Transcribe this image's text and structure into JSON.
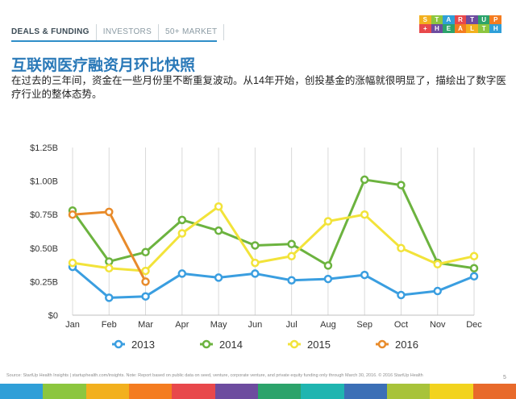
{
  "nav": {
    "items": [
      "DEALS & FUNDING",
      "INVESTORS",
      "50+ MARKET"
    ]
  },
  "logo": {
    "line1": [
      "S",
      "T",
      "A",
      "R",
      "T",
      "U",
      "P"
    ],
    "line2": [
      "+",
      "H",
      "E",
      "A",
      "L",
      "T",
      "H"
    ],
    "colors": [
      "#f2b01e",
      "#8cc63f",
      "#2f9fd8",
      "#e8484b",
      "#6d4c9f",
      "#2ca36b",
      "#f47c20"
    ]
  },
  "headline": "互联网医疗融资月环比快照",
  "lead": "在过去的三年间，资金在一些月份里不断重复波动。从14年开始，创投基金的涨幅就很明显了，描绘出了数字医疗行业的整体态势。",
  "chart_data": {
    "type": "line",
    "categories": [
      "Jan",
      "Feb",
      "Mar",
      "Apr",
      "May",
      "Jun",
      "Jul",
      "Aug",
      "Sep",
      "Oct",
      "Nov",
      "Dec"
    ],
    "y_ticks": [
      0,
      0.25,
      0.5,
      0.75,
      1.0,
      1.25
    ],
    "y_tick_labels": [
      "$0",
      "$0.25B",
      "$0.50B",
      "$0.75B",
      "$1.00B",
      "$1.25B"
    ],
    "ylim": [
      0,
      1.25
    ],
    "grid": "vertical",
    "legend_position": "bottom",
    "series": [
      {
        "name": "2013",
        "color": "#3a9ee0",
        "values": [
          0.36,
          0.13,
          0.14,
          0.31,
          0.28,
          0.31,
          0.26,
          0.27,
          0.3,
          0.15,
          0.18,
          0.29
        ]
      },
      {
        "name": "2014",
        "color": "#6cb33f",
        "values": [
          0.78,
          0.4,
          0.47,
          0.71,
          0.63,
          0.52,
          0.53,
          0.37,
          1.01,
          0.97,
          0.39,
          0.35
        ]
      },
      {
        "name": "2015",
        "color": "#f2e33a",
        "values": [
          0.39,
          0.35,
          0.33,
          0.61,
          0.81,
          0.39,
          0.44,
          0.7,
          0.75,
          0.5,
          0.38,
          0.44
        ]
      },
      {
        "name": "2016",
        "color": "#e88b2b",
        "values": [
          0.75,
          0.77,
          0.25,
          null,
          null,
          null,
          null,
          null,
          null,
          null,
          null,
          null
        ]
      }
    ]
  },
  "footer": {
    "source": "Source: StartUp Health Insights | startuphealth.com/insights. Note: Report based on public data on seed, venture, corporate venture, and private equity funding only through March 30, 2016. © 2016 StartUp Health",
    "page": "5",
    "bar_colors": [
      "#2f9fd8",
      "#8cc63f",
      "#f2b01e",
      "#f47c20",
      "#e8484b",
      "#6d4c9f",
      "#2ca36b",
      "#1fb5b0",
      "#3b6fb6",
      "#a8c33a",
      "#f2d31e",
      "#e86a2b"
    ]
  }
}
